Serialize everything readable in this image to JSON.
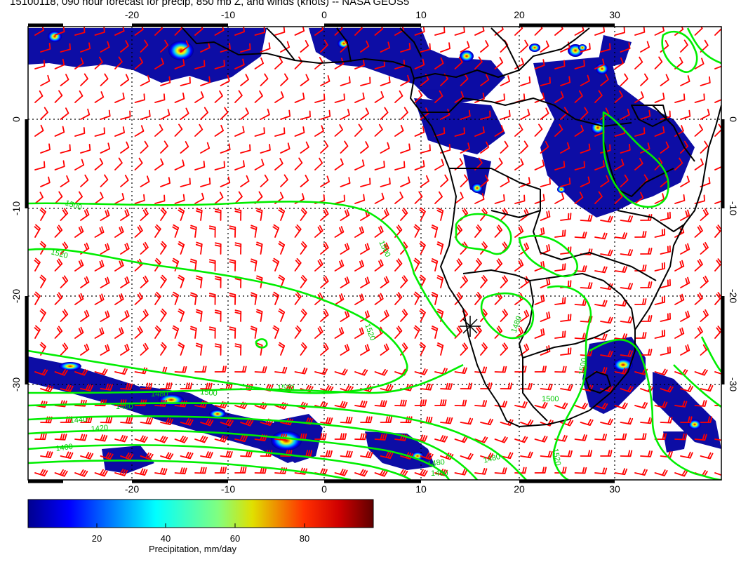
{
  "title": "15100118, 090 hour forecast for precip, 850 mb Z, and winds (knots) -- NASA GEOS5",
  "map": {
    "lon_ticks": [
      "-20",
      "-10",
      "0",
      "10",
      "20",
      "30"
    ],
    "lat_ticks": [
      "0",
      "-10",
      "-20",
      "-30"
    ],
    "contour_labels": [
      "1500",
      "1520",
      "1500",
      "1520",
      "1500",
      "1520",
      "1480",
      "1460",
      "1440",
      "1420",
      "1400",
      "1480",
      "1480",
      "1500",
      "1520",
      "1400",
      "1480",
      "1500"
    ],
    "colors": {
      "wind_barbs": "#ff0000",
      "height_contours": "#00ee00",
      "coastlines": "#000000",
      "precip_low": "#00008f",
      "precip_high": "#800000"
    }
  },
  "colorbar": {
    "ticks": [
      "20",
      "40",
      "60",
      "80"
    ],
    "label": "Precipitation, mm/day",
    "min": 0,
    "max": 100
  }
}
